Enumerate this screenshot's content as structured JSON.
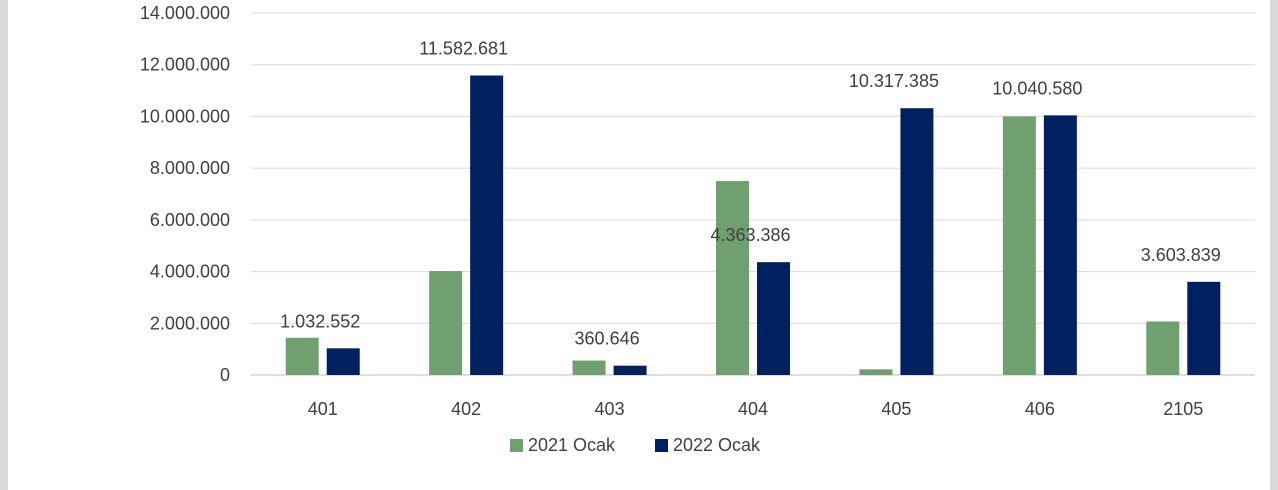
{
  "chart_data": {
    "type": "bar",
    "categories": [
      "401",
      "402",
      "403",
      "404",
      "405",
      "406",
      "2105"
    ],
    "series": [
      {
        "name": "2021 Ocak",
        "color": "#70a070",
        "values": [
          1440000,
          4020000,
          560000,
          7500000,
          220000,
          10000000,
          2070000
        ]
      },
      {
        "name": "2022 Ocak",
        "color": "#002060",
        "values": [
          1032552,
          11582681,
          360646,
          4363386,
          10317385,
          10040580,
          3603839
        ]
      }
    ],
    "data_labels": {
      "2022 Ocak": [
        "1.032.552",
        "11.582.681",
        "360.646",
        "4.363.386",
        "10.317.385",
        "10.040.580",
        "3.603.839"
      ]
    },
    "y_ticks": [
      "0",
      "2.000.000",
      "4.000.000",
      "6.000.000",
      "8.000.000",
      "10.000.000",
      "12.000.000",
      "14.000.000"
    ],
    "ylim": [
      0,
      14000000
    ],
    "grid": true,
    "legend": "bottom"
  }
}
